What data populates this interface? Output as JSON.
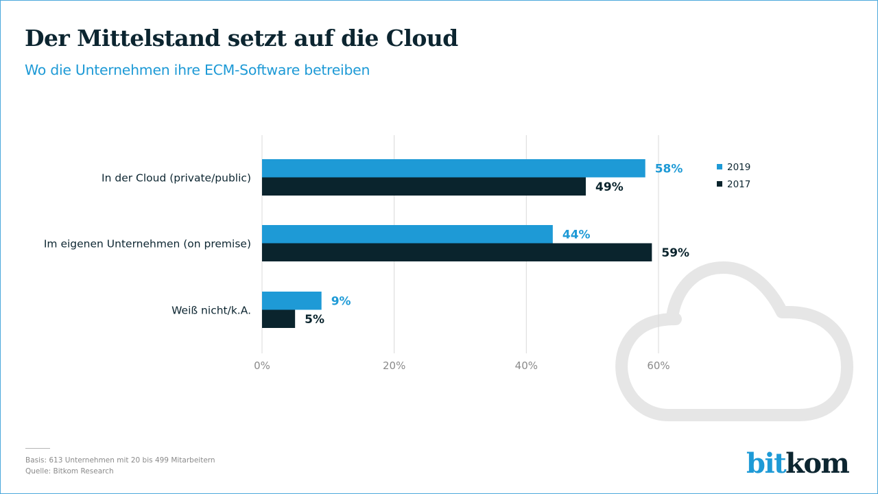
{
  "header": {
    "title": "Der Mittelstand setzt auf die Cloud",
    "subtitle": "Wo die Unternehmen ihre ECM-Software betreiben"
  },
  "footer": {
    "basis": "Basis: 613 Unternehmen mit 20 bis 499 Mitarbeitern",
    "source": "Quelle: Bitkom Research"
  },
  "logo": {
    "part1": "bit",
    "part2": "kom"
  },
  "colors": {
    "series_2019": "#1e9ad6",
    "series_2017": "#0a242d",
    "grid": "#d9d9d9",
    "cloud": "#e6e6e6"
  },
  "decoration": {
    "background_icon": "cloud-icon"
  },
  "chart_data": {
    "type": "bar",
    "orientation": "horizontal",
    "title": "Der Mittelstand setzt auf die Cloud",
    "subtitle": "Wo die Unternehmen ihre ECM-Software betreiben",
    "categories": [
      "In der Cloud (private/public)",
      "Im eigenen Unternehmen (on premise)",
      "Weiß nicht/k.A."
    ],
    "series": [
      {
        "name": "2019",
        "values": [
          58,
          44,
          9
        ],
        "labels": [
          "58%",
          "44%",
          "9%"
        ]
      },
      {
        "name": "2017",
        "values": [
          49,
          59,
          5
        ],
        "labels": [
          "49%",
          "59%",
          "5%"
        ]
      }
    ],
    "xlabel": "",
    "ylabel": "",
    "xlim": [
      0,
      60
    ],
    "x_ticks": [
      0,
      20,
      40,
      60
    ],
    "x_tick_labels": [
      "0%",
      "20%",
      "40%",
      "60%"
    ],
    "unit": "%",
    "grid": true,
    "legend": {
      "position": "top-right",
      "entries": [
        "2019",
        "2017"
      ]
    }
  }
}
